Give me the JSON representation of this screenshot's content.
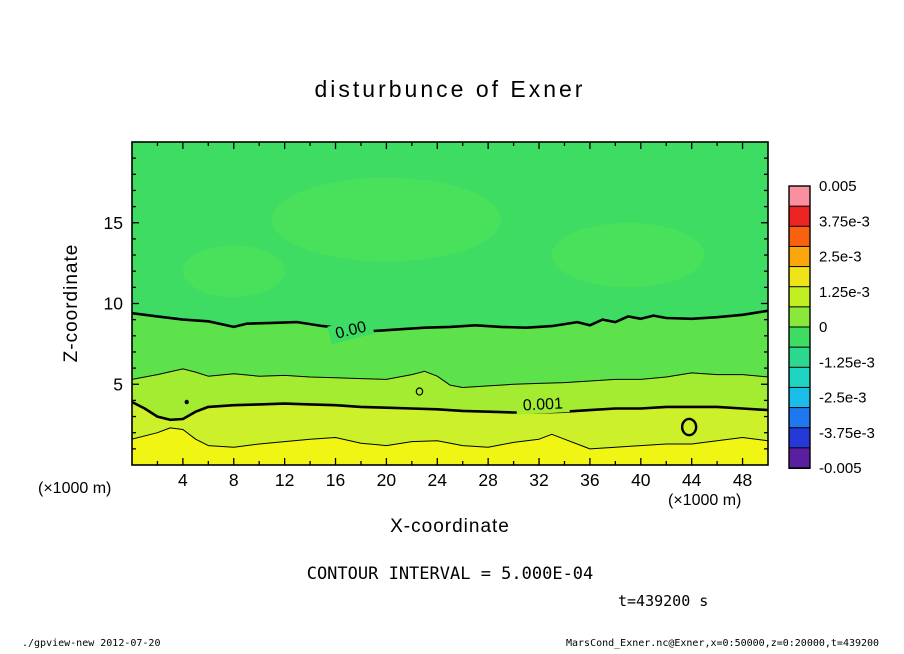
{
  "chart_data": {
    "type": "filled-contour",
    "title": "disturbunce of Exner",
    "xlabel": "X-coordinate",
    "ylabel": "Z-coordinate",
    "x_unit": "(×1000 m)",
    "contour_interval_label": "CONTOUR INTERVAL = 5.000E-04",
    "time_label": "t=439200 s",
    "footer_left": "./gpview-new  2012-07-20",
    "footer_right": "MarsCond_Exner.nc@Exner,x=0:50000,z=0:20000,t=439200",
    "x_range": [
      0,
      50
    ],
    "z_range": [
      0,
      20
    ],
    "x_ticks": [
      4,
      8,
      12,
      16,
      20,
      24,
      28,
      32,
      36,
      40,
      44,
      48
    ],
    "x_minor_step": 2,
    "y_ticks": [
      5,
      10,
      15
    ],
    "y_minor_step": 1,
    "contour_interval": 0.0005,
    "base_color": "#3edc63",
    "patches": [
      {
        "x": 20,
        "z": 15.2,
        "rx": 9,
        "rz": 2.6,
        "color": "#49e05b"
      },
      {
        "x": 39,
        "z": 13.0,
        "rx": 6,
        "rz": 2.0,
        "color": "#49e05b"
      },
      {
        "x": 8,
        "z": 12.0,
        "rx": 4,
        "rz": 1.6,
        "color": "#49e05b"
      }
    ],
    "bands": [
      {
        "level": 0.0,
        "thick": true,
        "color_below": "#5ee24b",
        "points": [
          [
            0,
            9.4
          ],
          [
            2,
            9.2
          ],
          [
            4,
            9.0
          ],
          [
            6,
            8.9
          ],
          [
            8,
            8.55
          ],
          [
            9,
            8.75
          ],
          [
            11,
            8.8
          ],
          [
            13,
            8.85
          ],
          [
            15,
            8.6
          ],
          [
            17,
            8.45
          ],
          [
            19,
            8.3
          ],
          [
            21,
            8.4
          ],
          [
            23,
            8.5
          ],
          [
            25,
            8.55
          ],
          [
            27,
            8.65
          ],
          [
            29,
            8.55
          ],
          [
            31,
            8.5
          ],
          [
            33,
            8.6
          ],
          [
            35,
            8.85
          ],
          [
            36,
            8.65
          ],
          [
            37,
            9.0
          ],
          [
            38,
            8.85
          ],
          [
            39,
            9.2
          ],
          [
            40,
            9.05
          ],
          [
            41,
            9.25
          ],
          [
            42,
            9.1
          ],
          [
            44,
            9.05
          ],
          [
            46,
            9.15
          ],
          [
            48,
            9.3
          ],
          [
            50,
            9.55
          ]
        ]
      },
      {
        "level": 0.0005,
        "thick": false,
        "color_below": "#a3ec31",
        "points": [
          [
            0,
            5.3
          ],
          [
            2,
            5.6
          ],
          [
            4,
            5.95
          ],
          [
            5,
            5.75
          ],
          [
            6,
            5.5
          ],
          [
            8,
            5.65
          ],
          [
            10,
            5.5
          ],
          [
            12,
            5.55
          ],
          [
            14,
            5.45
          ],
          [
            16,
            5.4
          ],
          [
            18,
            5.35
          ],
          [
            20,
            5.3
          ],
          [
            22,
            5.6
          ],
          [
            23,
            5.8
          ],
          [
            24,
            5.5
          ],
          [
            25,
            4.95
          ],
          [
            26,
            4.8
          ],
          [
            28,
            4.9
          ],
          [
            30,
            5.0
          ],
          [
            32,
            5.05
          ],
          [
            34,
            5.1
          ],
          [
            36,
            5.2
          ],
          [
            38,
            5.3
          ],
          [
            40,
            5.3
          ],
          [
            42,
            5.45
          ],
          [
            44,
            5.7
          ],
          [
            46,
            5.6
          ],
          [
            48,
            5.6
          ],
          [
            50,
            5.45
          ]
        ]
      },
      {
        "level": 0.001,
        "thick": true,
        "color_below": "#ccf02a",
        "points": [
          [
            0,
            3.9
          ],
          [
            1,
            3.5
          ],
          [
            2,
            3.0
          ],
          [
            3,
            2.8
          ],
          [
            4,
            2.85
          ],
          [
            5,
            3.3
          ],
          [
            6,
            3.6
          ],
          [
            8,
            3.7
          ],
          [
            10,
            3.75
          ],
          [
            12,
            3.8
          ],
          [
            14,
            3.75
          ],
          [
            16,
            3.7
          ],
          [
            18,
            3.6
          ],
          [
            20,
            3.55
          ],
          [
            22,
            3.5
          ],
          [
            24,
            3.45
          ],
          [
            26,
            3.35
          ],
          [
            28,
            3.3
          ],
          [
            30,
            3.25
          ],
          [
            32,
            3.25
          ],
          [
            34,
            3.3
          ],
          [
            36,
            3.4
          ],
          [
            38,
            3.5
          ],
          [
            40,
            3.5
          ],
          [
            42,
            3.6
          ],
          [
            44,
            3.6
          ],
          [
            46,
            3.6
          ],
          [
            48,
            3.5
          ],
          [
            50,
            3.4
          ]
        ]
      },
      {
        "level": 0.0015,
        "thick": false,
        "color_below": "#f1f513",
        "points": [
          [
            0,
            1.6
          ],
          [
            2,
            2.0
          ],
          [
            3,
            2.3
          ],
          [
            4,
            2.2
          ],
          [
            5,
            1.6
          ],
          [
            6,
            1.2
          ],
          [
            8,
            1.1
          ],
          [
            10,
            1.3
          ],
          [
            12,
            1.45
          ],
          [
            14,
            1.6
          ],
          [
            16,
            1.7
          ],
          [
            18,
            1.35
          ],
          [
            20,
            1.2
          ],
          [
            22,
            1.45
          ],
          [
            24,
            1.5
          ],
          [
            26,
            1.2
          ],
          [
            28,
            1.1
          ],
          [
            30,
            1.4
          ],
          [
            32,
            1.6
          ],
          [
            33,
            1.9
          ],
          [
            34,
            1.6
          ],
          [
            36,
            1.0
          ],
          [
            38,
            1.1
          ],
          [
            40,
            1.2
          ],
          [
            42,
            1.3
          ],
          [
            44,
            1.3
          ],
          [
            46,
            1.5
          ],
          [
            48,
            1.7
          ],
          [
            50,
            1.5
          ]
        ]
      }
    ],
    "closed_contours": [
      {
        "x": 43.8,
        "z": 2.35,
        "rx": 0.55,
        "rz": 0.5,
        "thick": true,
        "filled": false
      },
      {
        "x": 22.6,
        "z": 4.55,
        "rx": 0.25,
        "rz": 0.22,
        "thick": false,
        "filled": false
      },
      {
        "x": 4.3,
        "z": 3.9,
        "rx": 0.12,
        "rz": 0.1,
        "thick": false,
        "filled": true
      }
    ],
    "line_labels": [
      {
        "text": "0.00",
        "x": 17.2,
        "z": 8.35,
        "angle": -14,
        "bg": "#3edc63"
      },
      {
        "text": "0.001",
        "x": 32.3,
        "z": 3.75,
        "angle": -3,
        "bg": "#a3ec31"
      }
    ],
    "colorbar": {
      "labels": [
        "0.005",
        "3.75e-3",
        "2.5e-3",
        "1.25e-3",
        "0",
        "-1.25e-3",
        "-2.5e-3",
        "-3.75e-3",
        "-0.005"
      ],
      "colors": [
        "#fa8fa0",
        "#ec2424",
        "#f8610f",
        "#fba60a",
        "#f0e317",
        "#c2ee24",
        "#8ae83a",
        "#3edc63",
        "#2bd98e",
        "#1dd3c1",
        "#18bdea",
        "#1e78f0",
        "#2538d8",
        "#5a1f9e"
      ]
    }
  }
}
